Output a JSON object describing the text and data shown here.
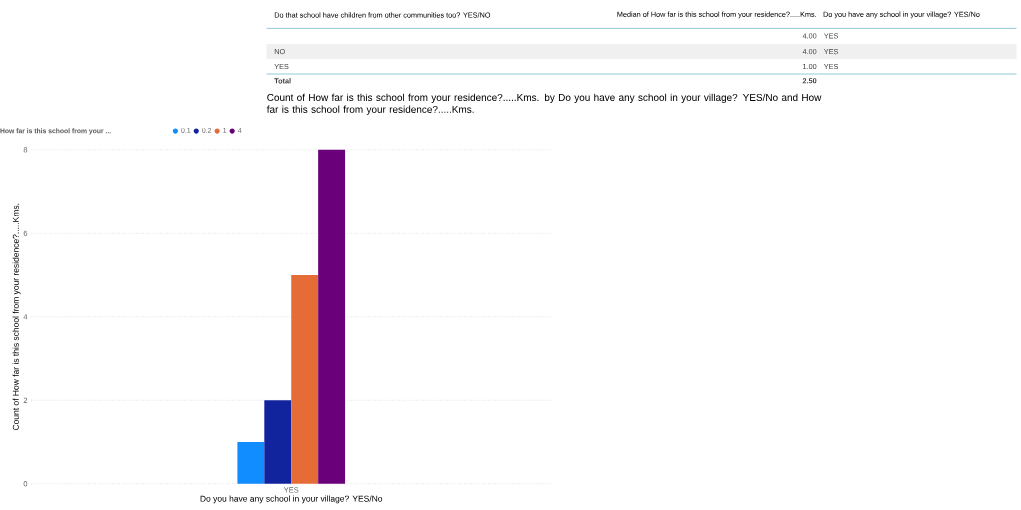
{
  "chart_data": [
    {
      "type": "other",
      "annotations": [
        "Do that school have children from other communities too? YES/NO",
        "Median of How far is this school from your residence?.....Kms.",
        "Do you have any school in your village? YES/No",
        "4.00",
        "YES",
        "NO",
        "4.00",
        "YES",
        "YES",
        "1.00",
        "YES",
        "Total",
        "2.50"
      ]
    },
    {
      "type": "bar",
      "title": "Count of How far is this school from your residence?.....Kms. by Do you have any school in your village? YES/No and How far is this school from your residence?.....Kms.",
      "xlabel": "Do you have any school in your village? YES/No",
      "ylabel": "Count of How far is this school from your residence?.....Kms.",
      "legend_title": "How far is this school from your ...",
      "categories": [
        "YES"
      ],
      "series": [
        {
          "name": "0.1",
          "color": "#118dff",
          "values": [
            1
          ]
        },
        {
          "name": "0.2",
          "color": "#12239e",
          "values": [
            2
          ]
        },
        {
          "name": "1",
          "color": "#e66c37",
          "values": [
            5
          ]
        },
        {
          "name": "4",
          "color": "#6b007b",
          "values": [
            8
          ]
        }
      ],
      "ylim": [
        0,
        8
      ],
      "yticks": [
        0,
        2,
        4,
        6,
        8
      ],
      "grid": "y",
      "legend": "top left"
    }
  ]
}
